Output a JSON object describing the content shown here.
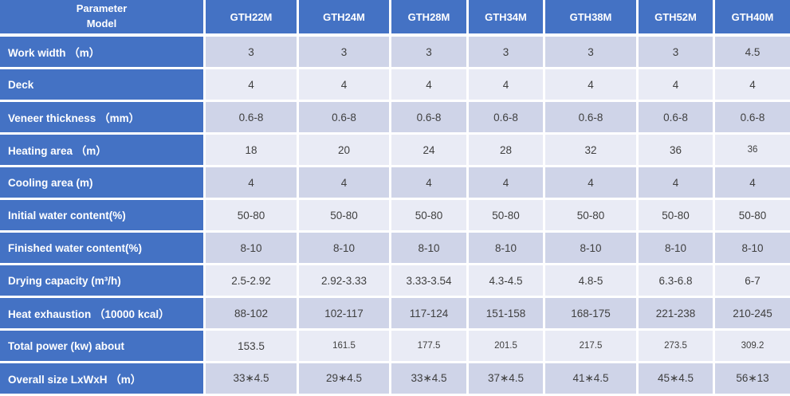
{
  "table": {
    "corner": {
      "line1": "Parameter",
      "line2": "Model"
    },
    "models": [
      "GTH22M",
      "GTH24M",
      "GTH28M",
      "GTH34M",
      "GTH38M",
      "GTH52M",
      "GTH40M"
    ],
    "rows": [
      {
        "label": "Work width （m）",
        "values": [
          "3",
          "3",
          "3",
          "3",
          "3",
          "3",
          "4.5"
        ]
      },
      {
        "label": "Deck",
        "values": [
          "4",
          "4",
          "4",
          "4",
          "4",
          "4",
          "4"
        ]
      },
      {
        "label": "Veneer thickness （mm）",
        "values": [
          "0.6-8",
          "0.6-8",
          "0.6-8",
          "0.6-8",
          "0.6-8",
          "0.6-8",
          "0.6-8"
        ]
      },
      {
        "label": "Heating area （m）",
        "values": [
          "18",
          "20",
          "24",
          "28",
          "32",
          "36",
          "36"
        ]
      },
      {
        "label": "Cooling area (m)",
        "values": [
          "4",
          "4",
          "4",
          "4",
          "4",
          "4",
          "4"
        ]
      },
      {
        "label": "Initial water content(%)",
        "values": [
          "50-80",
          "50-80",
          "50-80",
          "50-80",
          "50-80",
          "50-80",
          "50-80"
        ]
      },
      {
        "label": "Finished water content(%)",
        "values": [
          "8-10",
          "8-10",
          "8-10",
          "8-10",
          "8-10",
          "8-10",
          "8-10"
        ]
      },
      {
        "label": "Drying capacity (m³/h)",
        "values": [
          "2.5-2.92",
          "2.92-3.33",
          "3.33-3.54",
          "4.3-4.5",
          "4.8-5",
          "6.3-6.8",
          "6-7"
        ]
      },
      {
        "label": "Heat exhaustion （10000 kcal）",
        "values": [
          "88-102",
          "102-117",
          "117-124",
          "151-158",
          "168-175",
          "221-238",
          "210-245"
        ]
      },
      {
        "label": "Total power (kw) about",
        "values": [
          "153.5",
          "161.5",
          "177.5",
          "201.5",
          "217.5",
          "273.5",
          "309.2"
        ]
      },
      {
        "label": "Overall size LxWxH （m）",
        "values": [
          "33∗4.5",
          "29∗4.5",
          "33∗4.5",
          "37∗4.5",
          "41∗4.5",
          "45∗4.5",
          "56∗13"
        ]
      }
    ],
    "colors": {
      "header_blue": "#4472C4",
      "label_blue": "#4472C4",
      "cell_dark": "#CFD4E8",
      "cell_light": "#E9EBF5",
      "value_text": "#3F3F3F",
      "divider": "#FFFFFF"
    }
  }
}
